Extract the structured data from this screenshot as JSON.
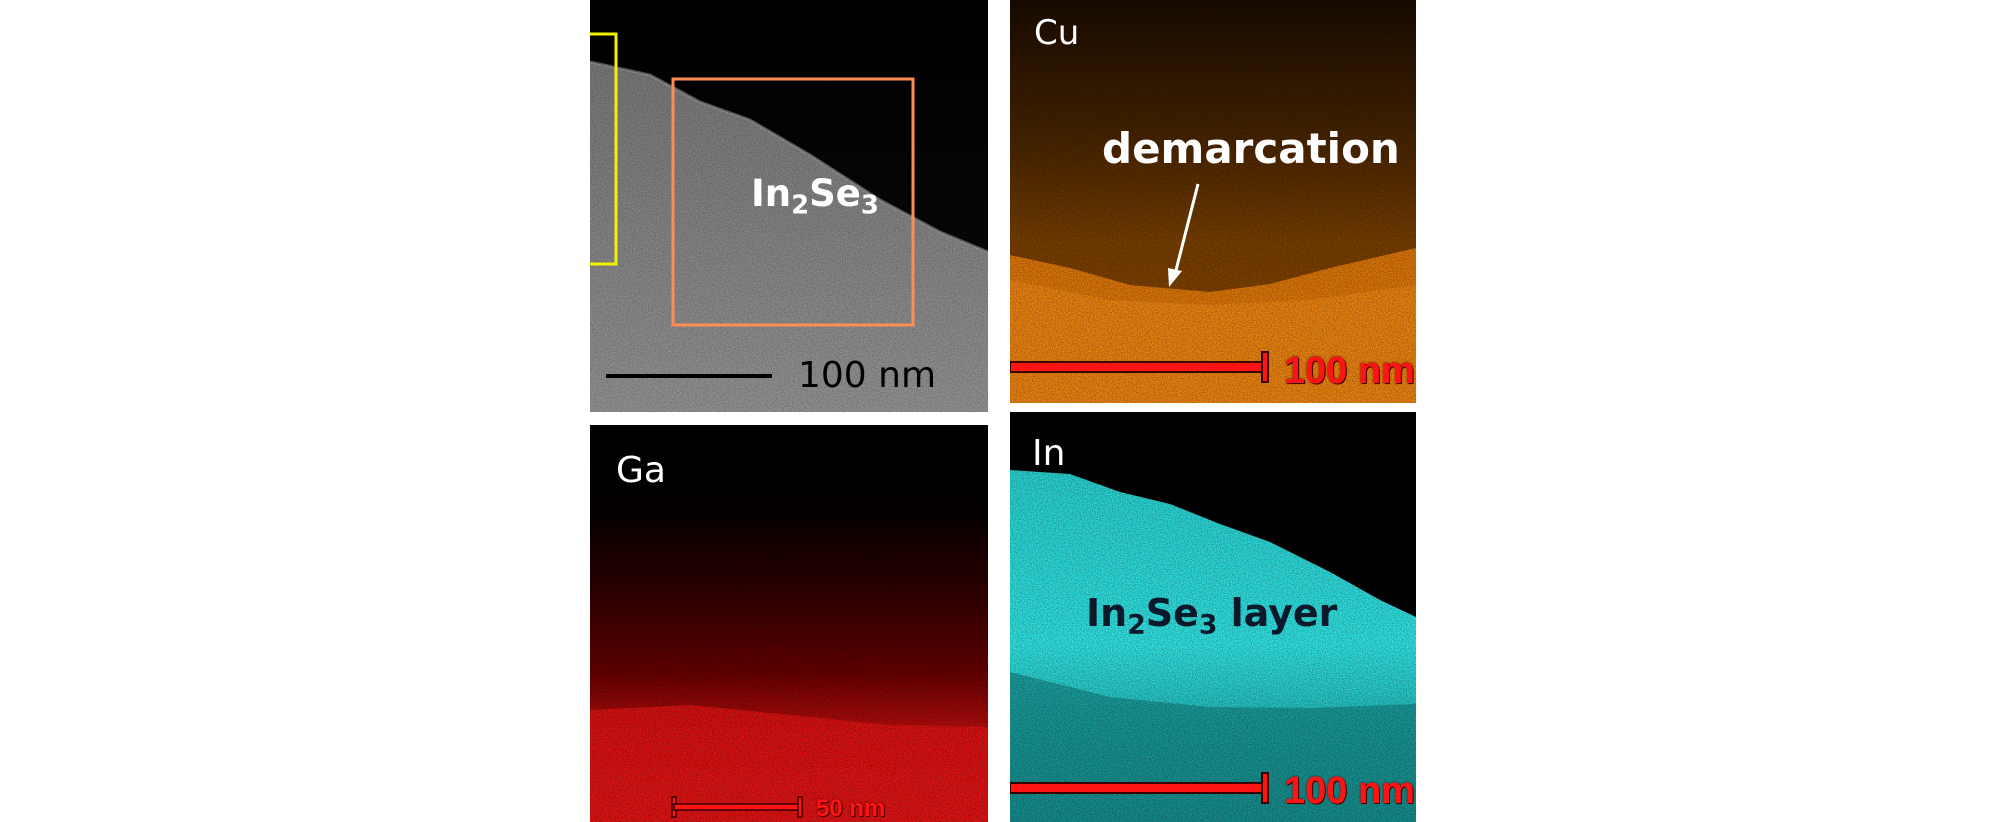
{
  "panels": {
    "tem": {
      "label_main": "In",
      "label_sub1": "2",
      "label_mid": "Se",
      "label_sub2": "3",
      "scale_text": "100 nm",
      "colors": {
        "yellow_box": "#f2f200",
        "orange_box": "#ff8c55"
      }
    },
    "cu": {
      "element": "Cu",
      "annotation": "demarcation",
      "scale_text": "100 nm",
      "color": "#ff8c1a"
    },
    "ga": {
      "element": "Ga",
      "scale_text": "50 nm",
      "color": "#ff1a1a"
    },
    "in": {
      "element": "In",
      "layer_main": "In",
      "layer_sub1": "2",
      "layer_mid": "Se",
      "layer_sub2": "3",
      "layer_tail": " layer",
      "scale_text": "100 nm",
      "color": "#2ee6e6"
    }
  }
}
